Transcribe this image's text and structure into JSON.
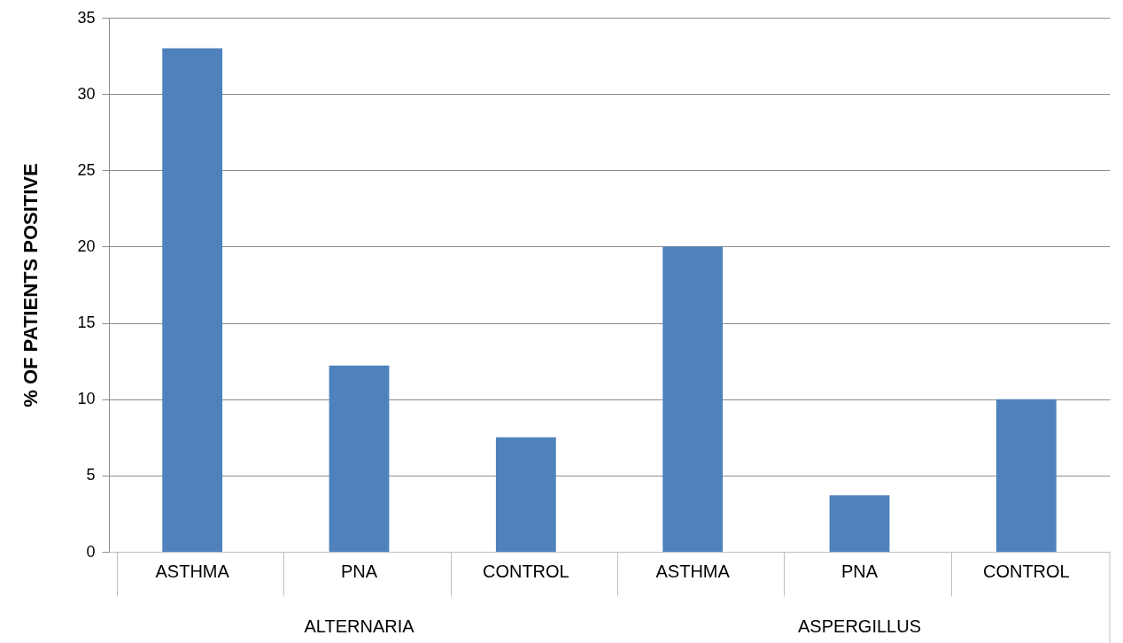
{
  "chart_data": {
    "type": "bar",
    "ylabel": "% OF PATIENTS POSITIVE",
    "categories": [
      "ASTHMA",
      "PNA",
      "CONTROL",
      "ASTHMA",
      "PNA",
      "CONTROL"
    ],
    "values": [
      33,
      12.2,
      7.5,
      20,
      3.7,
      10
    ],
    "color": "#4f81bd",
    "ylim": [
      0,
      35
    ],
    "yticks": [
      0,
      5,
      10,
      15,
      20,
      25,
      30,
      35
    ],
    "grid": "y",
    "annotations": [
      "ALTERNARIA",
      "ASPERGILLUS"
    ]
  }
}
